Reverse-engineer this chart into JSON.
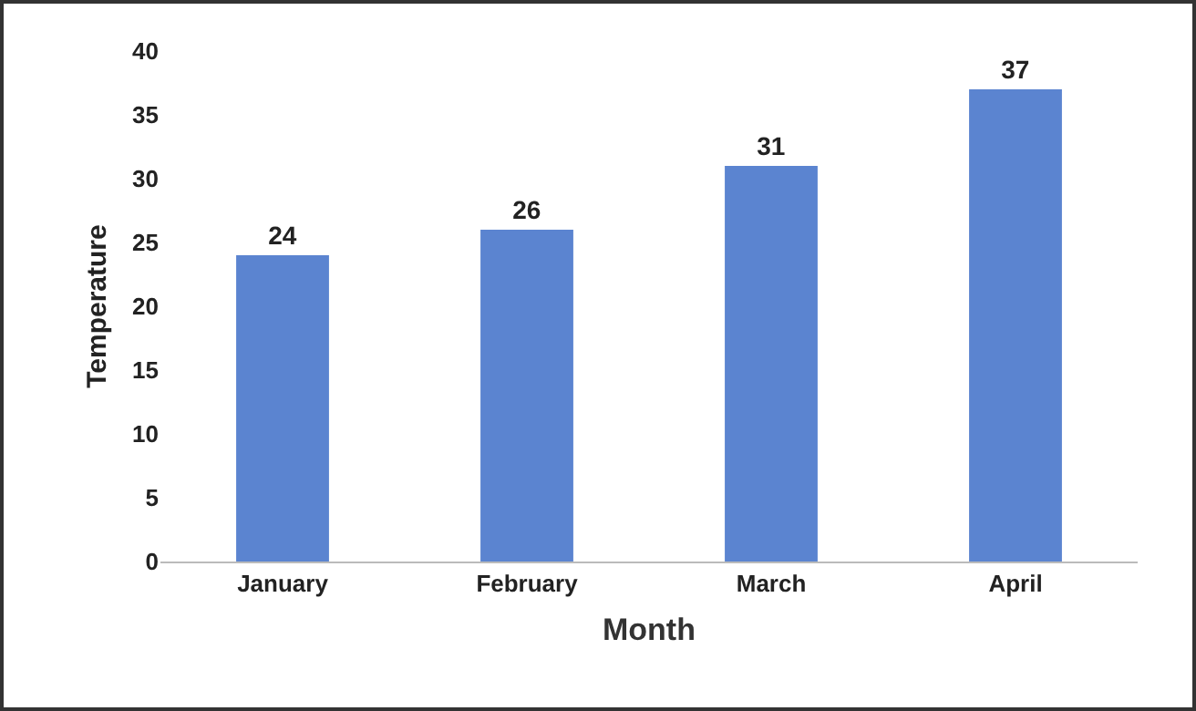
{
  "chart_data": {
    "type": "bar",
    "xlabel": "Month",
    "ylabel": "Temperature",
    "categories": [
      "January",
      "February",
      "March",
      "April"
    ],
    "values": [
      24,
      26,
      31,
      37
    ],
    "color": "#5b84d0",
    "ylim": [
      0,
      40
    ],
    "yticks": [
      0,
      5,
      10,
      15,
      20,
      25,
      30,
      35,
      40
    ],
    "data_labels": true,
    "grid": false
  }
}
